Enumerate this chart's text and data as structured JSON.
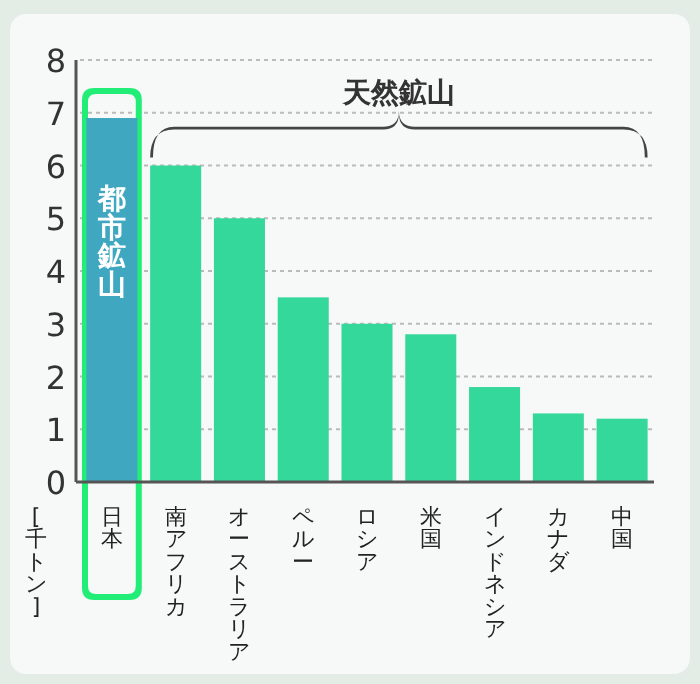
{
  "chart_data": {
    "type": "bar",
    "ylabel": "[千トン]",
    "categories": [
      "日本",
      "南アフリカ",
      "オーストラリア",
      "ペルー",
      "ロシア",
      "米国",
      "インドネシア",
      "カナダ",
      "中国"
    ],
    "values": [
      6.9,
      6.0,
      5.0,
      3.5,
      3.0,
      2.8,
      1.8,
      1.3,
      1.2
    ],
    "colors": [
      "#3fa8c0",
      "#34d89a",
      "#34d89a",
      "#34d89a",
      "#34d89a",
      "#34d89a",
      "#34d89a",
      "#34d89a",
      "#34d89a"
    ],
    "ylim": [
      0,
      8
    ],
    "yticks": [
      0,
      1,
      2,
      3,
      4,
      5,
      6,
      7,
      8
    ],
    "grid": "y",
    "bands": [
      {
        "axis": "x",
        "from": "日本",
        "to": "日本",
        "color": "#22ee77"
      }
    ],
    "annotations": [
      "都市鉱山",
      "天然鉱山"
    ]
  }
}
